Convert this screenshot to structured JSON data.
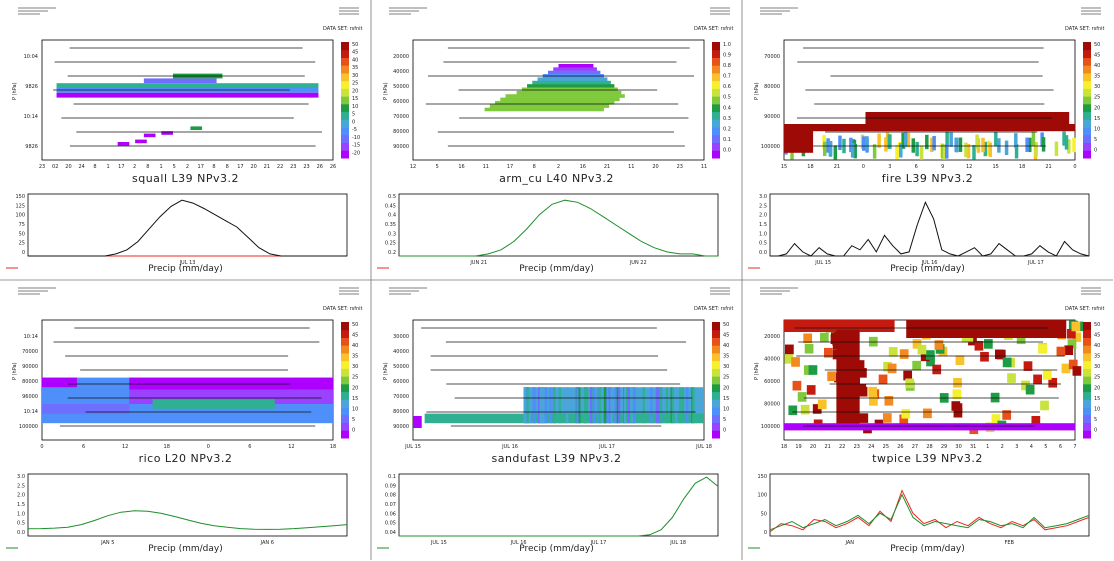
{
  "figure": {
    "dataset_label": "DATA SET: rsfnit"
  },
  "colors": {
    "cbar": [
      "#ae00ff",
      "#9a42ff",
      "#6e6eff",
      "#4f8ffa",
      "#4aa6d9",
      "#2fb092",
      "#1d9b45",
      "#7fc93c",
      "#c9e23c",
      "#f5f22d",
      "#f9c12a",
      "#f28a1f",
      "#e8521a",
      "#c51a10",
      "#9e0a05"
    ],
    "precip_obs": "#e8281e",
    "precip_model": "#1d8f2a",
    "precip_black": "#111111"
  },
  "panels": [
    {
      "title": "squall L39 NPv3.2",
      "subtitle": "Precip (mm/day)",
      "dataset": "DATA SET: rsfnit",
      "yunits": "P (hPa)",
      "top_yticks": [
        "10:04",
        "9826",
        "10:14",
        "9826"
      ],
      "bottom_yticks": [
        "150",
        "125",
        "100",
        "75",
        "50",
        "25",
        "0"
      ],
      "top_xticks": [
        "23",
        "02",
        "20",
        "24",
        "8",
        "1",
        "17",
        "2",
        "8",
        "1",
        "5",
        "2",
        "17",
        "8",
        "8",
        "17",
        "20",
        "21",
        "22",
        "23",
        "23",
        "26",
        "26"
      ],
      "bottom_xticks": [
        "JUL 13"
      ],
      "colorbar_labels": [
        "50",
        "45",
        "40",
        "35",
        "30",
        "25",
        "20",
        "15",
        "10",
        "5",
        "0",
        "-5",
        "-10",
        "-15",
        "-20"
      ],
      "chart_data": {
        "type": "heatmap_with_line",
        "x_label": "JUL 13",
        "precip_model": [
          0,
          0,
          0,
          0,
          0,
          0,
          0,
          0,
          5,
          15,
          35,
          65,
          95,
          120,
          135,
          128,
          115,
          100,
          85,
          70,
          45,
          20,
          5,
          0,
          0,
          0,
          0,
          0,
          0,
          0
        ],
        "precip_obs": [
          0,
          0,
          0,
          0,
          0,
          0,
          0,
          0,
          0,
          0,
          0,
          0,
          0,
          0,
          0,
          0,
          0,
          0,
          0,
          0,
          0,
          0,
          0,
          0,
          0,
          0,
          0,
          0,
          0,
          0
        ],
        "ylim": [
          0,
          150
        ]
      }
    },
    {
      "title": "arm_cu L40 NPv3.2",
      "subtitle": "Precip (mm/day)",
      "dataset": "DATA SET: rsfnit",
      "yunits": "P (hPa)",
      "top_yticks": [
        "20000",
        "40000",
        "50000",
        "60000",
        "70000",
        "80000",
        "90000"
      ],
      "bottom_yticks": [
        "0.5",
        "0.45",
        "0.4",
        "0.35",
        "0.3",
        "0.25",
        "0.2"
      ],
      "top_xticks": [
        "12",
        "5",
        "16",
        "11",
        "17",
        "8",
        "2",
        "16",
        "21",
        "11",
        "20",
        "23",
        "11"
      ],
      "bottom_xticks": [
        "JUN 21",
        "JUN 22"
      ],
      "colorbar_labels": [
        "1.0",
        "0.9",
        "0.8",
        "0.7",
        "0.6",
        "0.5",
        "0.4",
        "0.3",
        "0.2",
        "0.1",
        "0.0"
      ],
      "chart_data": {
        "type": "heatmap_with_line",
        "x_label": "JUN 21",
        "precip_model": [
          0.2,
          0.2,
          0.2,
          0.2,
          0.2,
          0.2,
          0.2,
          0.21,
          0.23,
          0.27,
          0.33,
          0.4,
          0.45,
          0.47,
          0.46,
          0.43,
          0.39,
          0.35,
          0.31,
          0.27,
          0.24,
          0.22,
          0.21,
          0.21,
          0.2,
          0.2
        ],
        "ylim": [
          0.2,
          0.5
        ]
      }
    },
    {
      "title": "fire L39 NPv3.2",
      "subtitle": "Precip (mm/day)",
      "dataset": "DATA SET: rsfnit",
      "yunits": "P (hPa)",
      "top_yticks": [
        "70000",
        "80000",
        "90000",
        "100000"
      ],
      "bottom_yticks": [
        "3.0",
        "2.5",
        "2.0",
        "1.5",
        "1.0",
        "0.5",
        "0.0"
      ],
      "top_xticks": [
        "15",
        "18",
        "21",
        "0",
        "3",
        "6",
        "9",
        "12",
        "15",
        "18",
        "21",
        "0"
      ],
      "bottom_xticks": [
        "JUL 15",
        "JUL 16",
        "JUL 17"
      ],
      "colorbar_labels": [
        "50",
        "45",
        "40",
        "35",
        "30",
        "25",
        "20",
        "15",
        "10",
        "5",
        "0"
      ],
      "chart_data": {
        "type": "heatmap_with_line",
        "precip_model": [
          0,
          0,
          0.1,
          0.6,
          0.2,
          0,
          0.4,
          0.1,
          0,
          0,
          0.5,
          0.3,
          0.8,
          0.2,
          1.0,
          0.5,
          0.1,
          0.2,
          1.5,
          2.6,
          1.8,
          0.3,
          0.1,
          0,
          0.2,
          0.4,
          0,
          0.1,
          0.6,
          0.3,
          0,
          0,
          0.1,
          0.5,
          0.2,
          0,
          0.7,
          0.3,
          0.1,
          0
        ],
        "ylim": [
          0,
          3
        ]
      }
    },
    {
      "title": "rico L20 NPv3.2",
      "subtitle": "Precip (mm/day)",
      "dataset": "DATA SET: rsfnit",
      "yunits": "P (hPa)",
      "top_yticks": [
        "10:14",
        "70000",
        "90000",
        "80000",
        "96000",
        "10:14",
        "100000"
      ],
      "bottom_yticks": [
        "3.0",
        "2.5",
        "2.0",
        "1.5",
        "1.0",
        "0.5",
        "0.0"
      ],
      "top_xticks": [
        "0",
        "6",
        "12",
        "18",
        "0",
        "6",
        "12",
        "18"
      ],
      "bottom_xticks": [
        "JAN 5",
        "JAN 6"
      ],
      "colorbar_labels": [
        "50",
        "45",
        "40",
        "35",
        "30",
        "25",
        "20",
        "15",
        "10",
        "5",
        "0"
      ],
      "chart_data": {
        "type": "heatmap_with_line",
        "precip_model": [
          0.35,
          0.36,
          0.38,
          0.42,
          0.55,
          0.75,
          0.98,
          1.15,
          1.22,
          1.2,
          1.1,
          0.95,
          0.78,
          0.62,
          0.5,
          0.42,
          0.36,
          0.33,
          0.32,
          0.33,
          0.36,
          0.4,
          0.45,
          0.5,
          0.55
        ],
        "ylim": [
          0,
          3
        ]
      }
    },
    {
      "title": "sandufast L39 NPv3.2",
      "subtitle": "Precip (mm/day)",
      "dataset": "DATA SET: rsfnit",
      "yunits": "P (hPa)",
      "top_yticks": [
        "30000",
        "40000",
        "50000",
        "60000",
        "70000",
        "80000",
        "90000"
      ],
      "bottom_yticks": [
        "0.1",
        "0.09",
        "0.08",
        "0.07",
        "0.06",
        "0.05",
        "0.04"
      ],
      "top_xticks": [
        "JUL 15",
        "JUL 16",
        "JUL 17",
        "JUL 18"
      ],
      "bottom_xticks": [
        "JUL 15",
        "JUL 16",
        "JUL 17",
        "JUL 18"
      ],
      "colorbar_labels": [
        "50",
        "45",
        "40",
        "35",
        "30",
        "25",
        "20",
        "15",
        "10",
        "5",
        "0"
      ],
      "chart_data": {
        "type": "heatmap_with_line",
        "precip_model": [
          0,
          0,
          0,
          0,
          0,
          0,
          0,
          0,
          0,
          0,
          0,
          0,
          0,
          0,
          0,
          0,
          0,
          0,
          0,
          0,
          0,
          0,
          0.002,
          0.01,
          0.03,
          0.06,
          0.085,
          0.095,
          0.08
        ],
        "ylim": [
          0,
          0.1
        ]
      }
    },
    {
      "title": "twpice L39 NPv3.2",
      "subtitle": "Precip (mm/day)",
      "dataset": "DATA SET: rsfnit",
      "yunits": "P (hPa)",
      "top_yticks": [
        "20000",
        "40000",
        "60000",
        "80000",
        "100000"
      ],
      "bottom_yticks": [
        "150",
        "100",
        "50",
        "0"
      ],
      "top_xticks": [
        "18",
        "19",
        "20",
        "21",
        "22",
        "23",
        "24",
        "25",
        "26",
        "27",
        "28",
        "29",
        "30",
        "31",
        "1",
        "2",
        "3",
        "4",
        "5",
        "6",
        "7"
      ],
      "bottom_xticks": [
        "JAN",
        "FEB"
      ],
      "colorbar_labels": [
        "50",
        "45",
        "40",
        "35",
        "30",
        "25",
        "20",
        "15",
        "10",
        "5",
        "0"
      ],
      "chart_data": {
        "type": "heatmap_with_line",
        "precip_obs": [
          10,
          30,
          25,
          15,
          40,
          35,
          20,
          30,
          45,
          25,
          60,
          35,
          110,
          55,
          30,
          40,
          20,
          35,
          25,
          45,
          30,
          20,
          35,
          25,
          40,
          15,
          20,
          25,
          35,
          45
        ],
        "precip_model": [
          15,
          25,
          35,
          20,
          30,
          40,
          25,
          35,
          50,
          30,
          55,
          40,
          100,
          45,
          25,
          35,
          30,
          25,
          20,
          40,
          35,
          25,
          30,
          20,
          45,
          20,
          25,
          30,
          40,
          50
        ],
        "ylim": [
          0,
          150
        ]
      }
    }
  ]
}
